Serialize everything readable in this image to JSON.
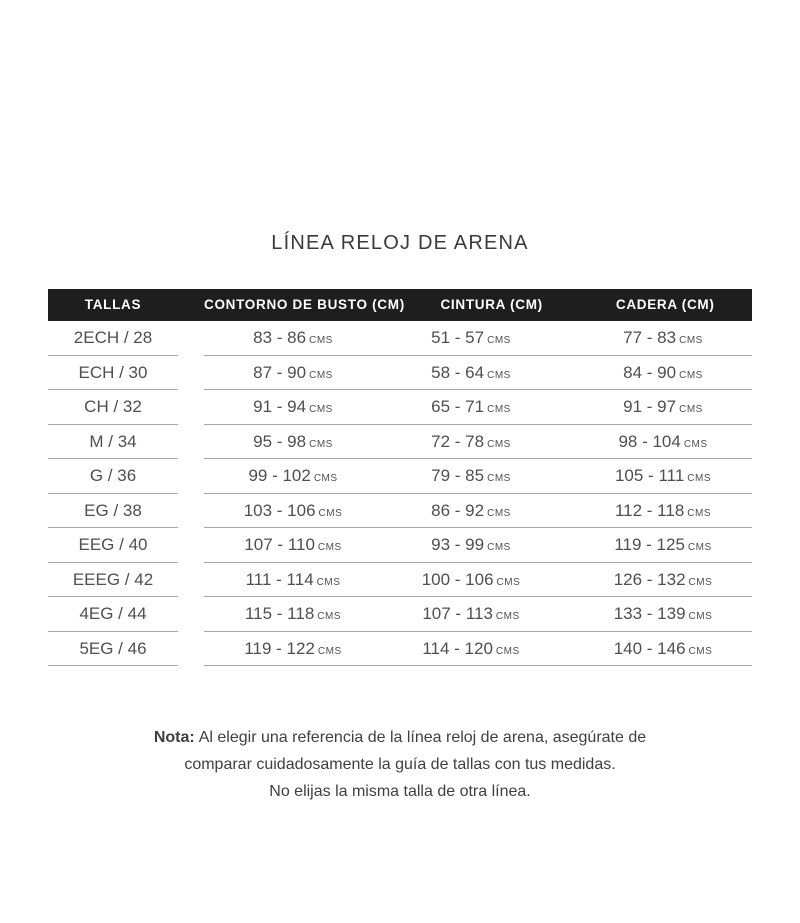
{
  "title": "LÍNEA RELOJ DE ARENA",
  "table": {
    "headers": [
      "TALLAS",
      "CONTORNO DE BUSTO (CM)",
      "CINTURA (CM)",
      "CADERA (CM)"
    ],
    "unit": "CMS",
    "rows": [
      {
        "talla": "2ECH / 28",
        "busto": "83 - 86",
        "cintura": "51 - 57",
        "cadera": "77 - 83"
      },
      {
        "talla": "ECH / 30",
        "busto": "87 - 90",
        "cintura": "58 - 64",
        "cadera": "84 - 90"
      },
      {
        "talla": "CH / 32",
        "busto": "91 - 94",
        "cintura": "65 - 71",
        "cadera": "91 - 97"
      },
      {
        "talla": "M / 34",
        "busto": "95 - 98",
        "cintura": "72 - 78",
        "cadera": "98 - 104"
      },
      {
        "talla": "G / 36",
        "busto": "99 - 102",
        "cintura": "79 - 85",
        "cadera": "105 - 111"
      },
      {
        "talla": "EG / 38",
        "busto": "103 - 106",
        "cintura": "86 - 92",
        "cadera": "112 - 118"
      },
      {
        "talla": "EEG / 40",
        "busto": "107 - 110",
        "cintura": "93 - 99",
        "cadera": "119 - 125"
      },
      {
        "talla": "EEEG / 42",
        "busto": "111 - 114",
        "cintura": "100 - 106",
        "cadera": "126 - 132"
      },
      {
        "talla": "4EG / 44",
        "busto": "115 - 118",
        "cintura": "107 - 113",
        "cadera": "133 - 139"
      },
      {
        "talla": "5EG / 46",
        "busto": "119 - 122",
        "cintura": "114 - 120",
        "cadera": "140 - 146"
      }
    ]
  },
  "note": {
    "label": "Nota:",
    "lines": [
      "Al elegir una referencia de la línea reloj de arena, asegúrate de",
      "comparar cuidadosamente la guía de tallas con tus medidas.",
      "No elijas la misma talla de otra línea."
    ]
  },
  "colors": {
    "header_background": "#1e1e1e",
    "header_text": "#ffffff",
    "body_text": "#4f4f4f",
    "title_text": "#3a3a3a",
    "divider_line": "#a8a8a8"
  }
}
